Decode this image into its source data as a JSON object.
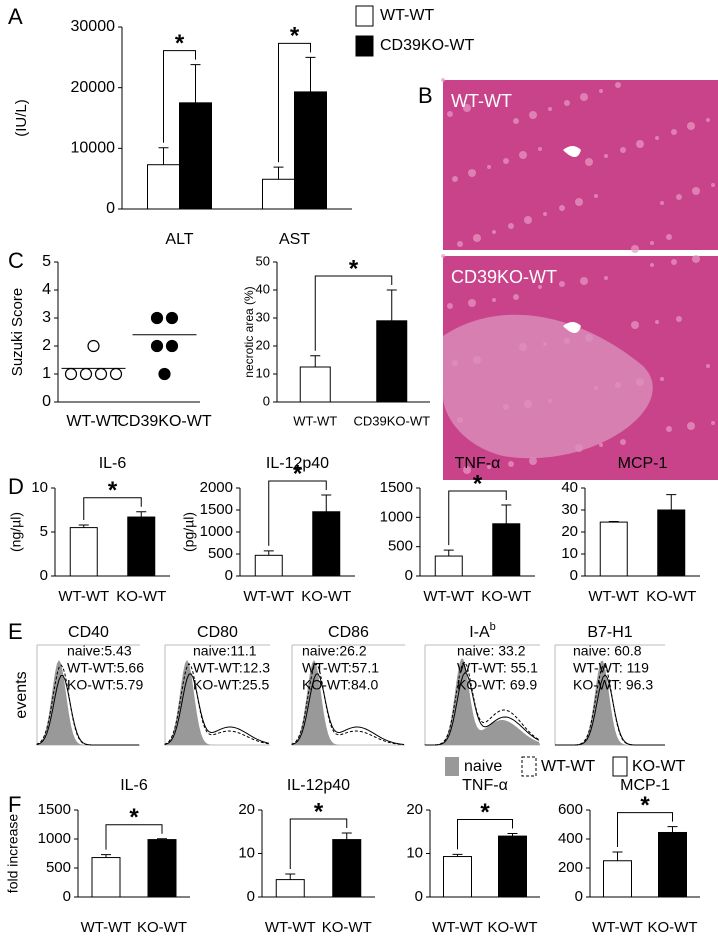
{
  "chart_data": [
    {
      "type": "bar",
      "panel": "A",
      "ylabel": "(IU/L)",
      "categories": [
        "ALT",
        "AST"
      ],
      "series": [
        {
          "name": "WT-WT",
          "color": "#ffffff",
          "values": [
            7300,
            4900
          ],
          "errors": [
            2800,
            2000
          ]
        },
        {
          "name": "CD39KO-WT",
          "color": "#000000",
          "values": [
            17500,
            19300
          ],
          "errors": [
            6300,
            5700
          ]
        }
      ],
      "significance": [
        "*",
        "*"
      ],
      "ylim": [
        0,
        30000
      ],
      "yticks": [
        0,
        10000,
        20000,
        30000
      ]
    },
    {
      "type": "image",
      "panel": "B",
      "labels": [
        "WT-WT",
        "CD39KO-WT"
      ]
    },
    {
      "type": "dot",
      "panel": "C",
      "ylabel": "Suzuki Score",
      "categories": [
        "WT-WT",
        "CD39KO-WT"
      ],
      "values": [
        [
          2,
          1,
          1,
          1,
          1
        ],
        [
          3,
          3,
          2,
          2,
          1
        ]
      ],
      "means": [
        1.2,
        2.4
      ],
      "colors": [
        "#ffffff",
        "#000000"
      ],
      "ylim": [
        0,
        5
      ],
      "yticks": [
        0,
        1,
        2,
        3,
        4,
        5
      ]
    },
    {
      "type": "bar",
      "ylabel": "necrotic area (%)",
      "categories": [
        "WT-WT",
        "CD39KO-WT"
      ],
      "values": [
        12.5,
        29
      ],
      "errors": [
        4,
        11
      ],
      "colors": [
        "#ffffff",
        "#000000"
      ],
      "significance": "*",
      "ylim": [
        0,
        50
      ],
      "yticks": [
        0,
        10,
        20,
        30,
        40,
        50
      ]
    },
    {
      "type": "bar",
      "panel": "D",
      "title": "IL-6",
      "ylabel": "(ng/µl)",
      "categories": [
        "WT-WT",
        "KO-WT"
      ],
      "values": [
        5.5,
        6.7
      ],
      "errors": [
        0.3,
        0.6
      ],
      "colors": [
        "#ffffff",
        "#000000"
      ],
      "significance": "*",
      "ylim": [
        0,
        10
      ],
      "yticks": [
        0,
        5,
        10
      ]
    },
    {
      "type": "bar",
      "title": "IL-12p40",
      "ylabel": "(pg/µl)",
      "categories": [
        "WT-WT",
        "KO-WT"
      ],
      "values": [
        470,
        1460
      ],
      "errors": [
        100,
        380
      ],
      "colors": [
        "#ffffff",
        "#000000"
      ],
      "significance": "*",
      "ylim": [
        0,
        2000
      ],
      "yticks": [
        0,
        500,
        1000,
        1500,
        2000
      ]
    },
    {
      "type": "bar",
      "title": "TNF-α",
      "categories": [
        "WT-WT",
        "KO-WT"
      ],
      "values": [
        340,
        890
      ],
      "errors": [
        100,
        320
      ],
      "colors": [
        "#ffffff",
        "#000000"
      ],
      "significance": "*",
      "ylim": [
        0,
        1500
      ],
      "yticks": [
        0,
        500,
        1000,
        1500
      ]
    },
    {
      "type": "bar",
      "title": "MCP-1",
      "categories": [
        "WT-WT",
        "KO-WT"
      ],
      "values": [
        24.5,
        30
      ],
      "errors": [
        0.3,
        7
      ],
      "colors": [
        "#ffffff",
        "#000000"
      ],
      "ylim": [
        0,
        40
      ],
      "yticks": [
        0,
        10,
        20,
        30,
        40
      ]
    },
    {
      "type": "flow",
      "panel": "E",
      "ylabel": "events",
      "panels": [
        {
          "title": "CD40",
          "stats": [
            "naive:5.43",
            "WT-WT:5.66",
            "KO-WT:5.79"
          ]
        },
        {
          "title": "CD80",
          "stats": [
            "naive:11.1",
            "WT-WT:12.3",
            "KO-WT:25.5"
          ]
        },
        {
          "title": "CD86",
          "stats": [
            "naive:26.2",
            "WT-WT:57.1",
            "KO-WT:84.0"
          ]
        },
        {
          "title": "I-A",
          "title_sup": "b",
          "stats": [
            "naive: 33.2",
            "WT-WT: 55.1",
            "KO-WT: 69.9"
          ]
        },
        {
          "title": "B7-H1",
          "stats": [
            "naive: 60.8",
            "WT-WT: 119",
            "KO-WT: 96.3"
          ]
        }
      ],
      "legend": [
        "naive",
        "WT-WT",
        "KO-WT"
      ]
    },
    {
      "type": "bar",
      "panel": "F",
      "title": "IL-6",
      "ylabel": "fold increase",
      "categories": [
        "WT-WT",
        "KO-WT"
      ],
      "values": [
        680,
        990
      ],
      "errors": [
        50,
        15
      ],
      "colors": [
        "#ffffff",
        "#000000"
      ],
      "significance": "*",
      "ylim": [
        0,
        1500
      ],
      "yticks": [
        0,
        500,
        1000,
        1500
      ]
    },
    {
      "type": "bar",
      "title": "IL-12p40",
      "categories": [
        "WT-WT",
        "KO-WT"
      ],
      "values": [
        4,
        13.2
      ],
      "errors": [
        1.3,
        1.5
      ],
      "colors": [
        "#ffffff",
        "#000000"
      ],
      "significance": "*",
      "ylim": [
        0,
        20
      ],
      "yticks": [
        0,
        10,
        20
      ]
    },
    {
      "type": "bar",
      "title": "TNF-α",
      "categories": [
        "WT-WT",
        "KO-WT"
      ],
      "values": [
        9.3,
        14
      ],
      "errors": [
        0.5,
        0.6
      ],
      "colors": [
        "#ffffff",
        "#000000"
      ],
      "significance": "*",
      "ylim": [
        0,
        20
      ],
      "yticks": [
        0,
        10,
        20
      ]
    },
    {
      "type": "bar",
      "title": "MCP-1",
      "categories": [
        "WT-WT",
        "KO-WT"
      ],
      "values": [
        250,
        445
      ],
      "errors": [
        60,
        40
      ],
      "colors": [
        "#ffffff",
        "#000000"
      ],
      "significance": "*",
      "ylim": [
        0,
        600
      ],
      "yticks": [
        0,
        200,
        400,
        600
      ]
    }
  ]
}
